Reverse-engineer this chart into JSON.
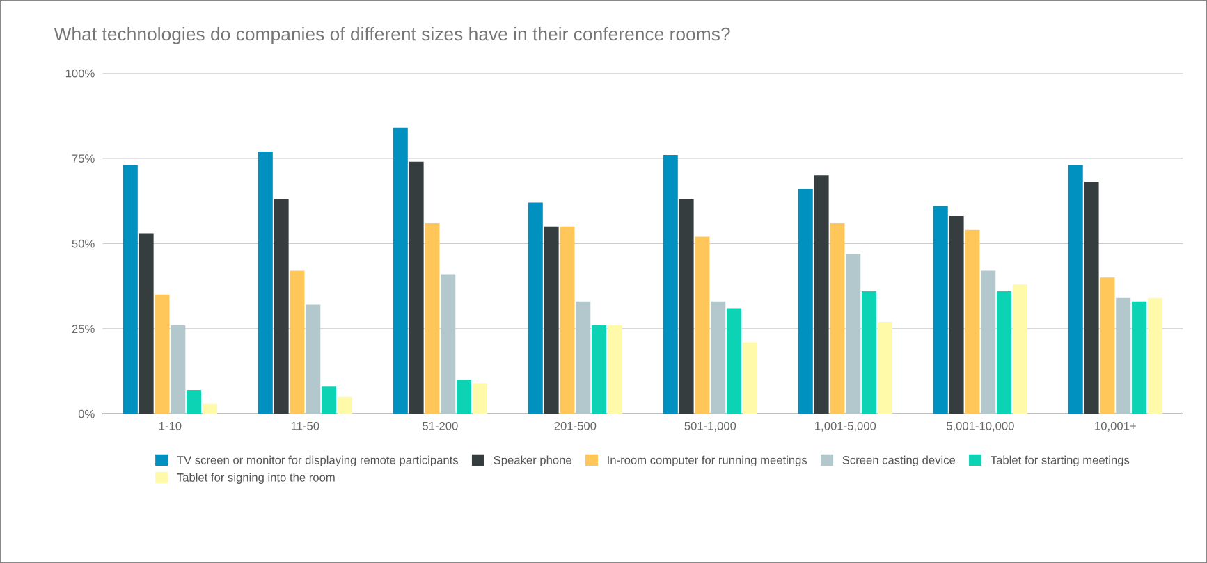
{
  "chart_data": {
    "type": "bar",
    "title": "What technologies do companies of different sizes have in their conference rooms?",
    "categories": [
      "1-10",
      "11-50",
      "51-200",
      "201-500",
      "501-1,000",
      "1,001-5,000",
      "5,001-10,000",
      "10,001+"
    ],
    "series": [
      {
        "name": "TV screen or monitor for displaying remote participants",
        "color": "#0191c0",
        "values": [
          73,
          77,
          84,
          62,
          76,
          66,
          61,
          73
        ]
      },
      {
        "name": "Speaker phone",
        "color": "#363d3f",
        "values": [
          53,
          63,
          74,
          55,
          63,
          70,
          58,
          68
        ]
      },
      {
        "name": "In-room computer for running meetings",
        "color": "#ffc65a",
        "values": [
          35,
          42,
          56,
          55,
          52,
          56,
          54,
          40
        ]
      },
      {
        "name": "Screen casting device",
        "color": "#b2c8cd",
        "values": [
          26,
          32,
          41,
          33,
          33,
          47,
          42,
          34
        ]
      },
      {
        "name": "Tablet for starting meetings",
        "color": "#0dd3b5",
        "values": [
          7,
          8,
          10,
          26,
          31,
          36,
          36,
          33
        ]
      },
      {
        "name": "Tablet for signing into the room",
        "color": "#fffaaa",
        "values": [
          3,
          5,
          9,
          26,
          21,
          27,
          38,
          34
        ]
      }
    ],
    "ylim": [
      0,
      100
    ],
    "yticks": [
      {
        "value": 0,
        "label": "0%"
      },
      {
        "value": 25,
        "label": "25%"
      },
      {
        "value": 50,
        "label": "50%"
      },
      {
        "value": 75,
        "label": "75%"
      },
      {
        "value": 100,
        "label": "100%"
      }
    ],
    "grid": "y",
    "legend": "bottom"
  }
}
